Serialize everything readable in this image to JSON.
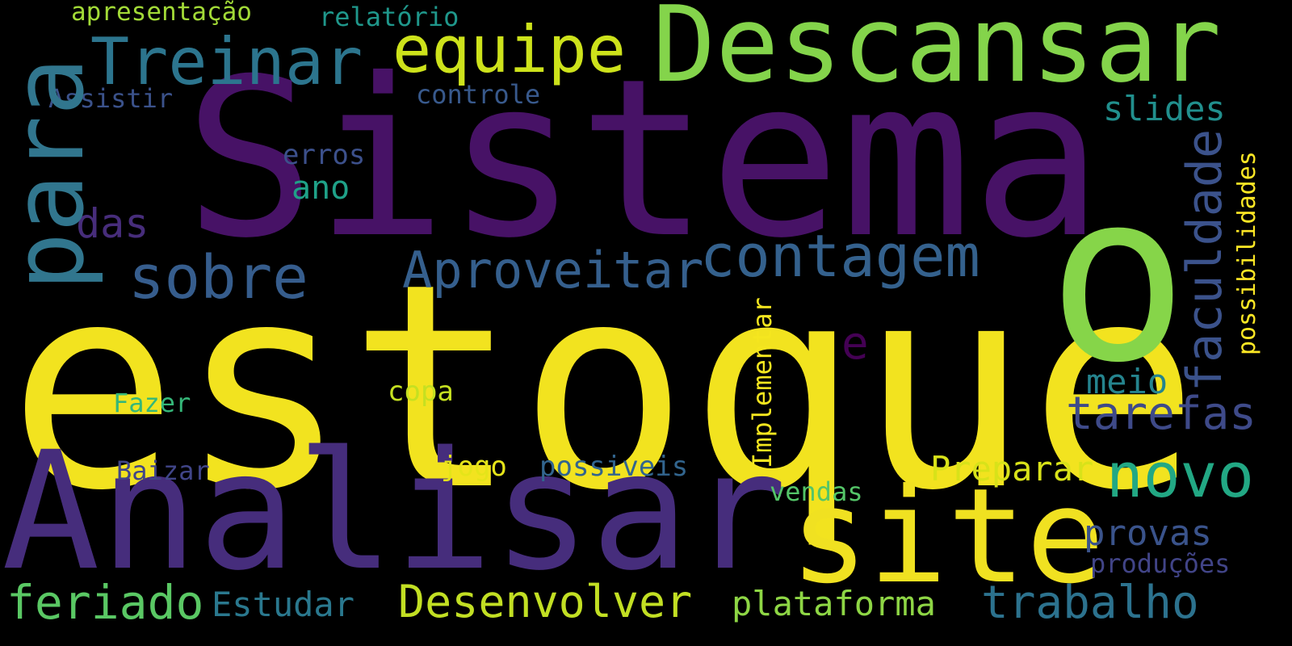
{
  "words": [
    {
      "text": "estoque",
      "color": "#f2e31f"
    },
    {
      "text": "Sistema",
      "color": "#471266"
    },
    {
      "text": "Analisar",
      "color": "#462d7c"
    },
    {
      "text": "site",
      "color": "#f0e121"
    },
    {
      "text": "Descansar",
      "color": "#84d44b"
    },
    {
      "text": "o",
      "color": "#86d549"
    },
    {
      "text": "para",
      "color": "#31768e"
    },
    {
      "text": "Treinar",
      "color": "#2c758e"
    },
    {
      "text": "equipe",
      "color": "#cde21b"
    },
    {
      "text": "contagem",
      "color": "#34618d"
    },
    {
      "text": "sobre",
      "color": "#365d8d"
    },
    {
      "text": "Aproveitar",
      "color": "#355f8d"
    },
    {
      "text": "novo",
      "color": "#22a884"
    },
    {
      "text": "tarefas",
      "color": "#3e4a89"
    },
    {
      "text": "feriado",
      "color": "#5ac864"
    },
    {
      "text": "Desenvolver",
      "color": "#c2df23"
    },
    {
      "text": "trabalho",
      "color": "#2c728e"
    },
    {
      "text": "plataforma",
      "color": "#8ed645"
    },
    {
      "text": "faculdade",
      "color": "#3b528b"
    },
    {
      "text": "Preparar",
      "color": "#d8e219"
    },
    {
      "text": "das",
      "color": "#472d7b"
    },
    {
      "text": "e",
      "color": "#440154"
    },
    {
      "text": "provas",
      "color": "#3a538b"
    },
    {
      "text": "slides",
      "color": "#218f8d"
    },
    {
      "text": "meio",
      "color": "#25848e"
    },
    {
      "text": "Estudar",
      "color": "#2a788e"
    },
    {
      "text": "ano",
      "color": "#1fa188"
    },
    {
      "text": "apresentação",
      "color": "#a2da37"
    },
    {
      "text": "relatório",
      "color": "#1f978b"
    },
    {
      "text": "Assistir",
      "color": "#3b528b"
    },
    {
      "text": "controle",
      "color": "#38598c"
    },
    {
      "text": "erros",
      "color": "#3c508b"
    },
    {
      "text": "copa",
      "color": "#c5e021"
    },
    {
      "text": "Fazer",
      "color": "#35b779"
    },
    {
      "text": "jogo",
      "color": "#e5e419"
    },
    {
      "text": "possiveis",
      "color": "#32658e"
    },
    {
      "text": "Baizar",
      "color": "#404588"
    },
    {
      "text": "vendas",
      "color": "#54c568"
    },
    {
      "text": "Implementar",
      "color": "#f5e61f"
    },
    {
      "text": "possibilidades",
      "color": "#fde725"
    },
    {
      "text": "produções",
      "color": "#414487"
    }
  ]
}
